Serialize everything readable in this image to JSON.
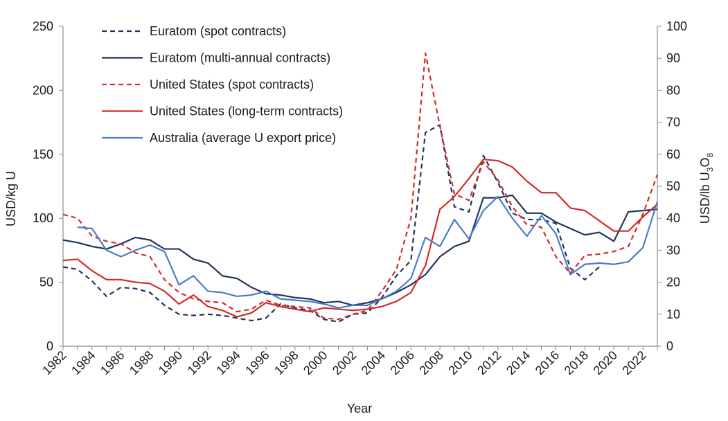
{
  "chart_data": {
    "type": "line",
    "xlabel": "Year",
    "ylabel_left": "USD/kg U",
    "ylabel_right": "USD/lb U",
    "ylabel_right_sub1": "3",
    "ylabel_right_mid": "O",
    "ylabel_right_sub2": "8",
    "ylim_left": [
      0,
      250
    ],
    "ylim_right": [
      0,
      100
    ],
    "yticks_left": [
      0,
      50,
      100,
      150,
      200,
      250
    ],
    "yticks_right": [
      0,
      10,
      20,
      30,
      40,
      50,
      60,
      70,
      80,
      90,
      100
    ],
    "xlim": [
      1982,
      2023
    ],
    "xticks": [
      "1982",
      "1984",
      "1986",
      "1988",
      "1990",
      "1992",
      "1994",
      "1996",
      "1998",
      "2000",
      "2002",
      "2004",
      "2006",
      "2008",
      "2010",
      "2012",
      "2014",
      "2016",
      "2018",
      "2020",
      "2022"
    ],
    "grid": false,
    "legend_position": "top-left",
    "series": [
      {
        "name": "Euratom (spot contracts)",
        "color": "#1f3556",
        "dash": "dashed",
        "points": [
          [
            1982,
            62
          ],
          [
            1983,
            60
          ],
          [
            1984,
            51
          ],
          [
            1985,
            39
          ],
          [
            1986,
            46
          ],
          [
            1987,
            45
          ],
          [
            1988,
            42
          ],
          [
            1989,
            32
          ],
          [
            1990,
            25
          ],
          [
            1991,
            24
          ],
          [
            1992,
            25
          ],
          [
            1993,
            24
          ],
          [
            1994,
            22
          ],
          [
            1995,
            20
          ],
          [
            1996,
            22
          ],
          [
            1997,
            33
          ],
          [
            1998,
            30
          ],
          [
            1999,
            28
          ],
          [
            2000,
            21
          ],
          [
            2001,
            19
          ],
          [
            2002,
            25
          ],
          [
            2003,
            26
          ],
          [
            2004,
            38
          ],
          [
            2005,
            55
          ],
          [
            2006,
            67
          ],
          [
            2007,
            167
          ],
          [
            2008,
            173
          ],
          [
            2009,
            109
          ],
          [
            2010,
            105
          ],
          [
            2011,
            149
          ],
          [
            2012,
            128
          ],
          [
            2013,
            104
          ],
          [
            2014,
            99
          ],
          [
            2015,
            99
          ],
          [
            2016,
            96
          ],
          [
            2017,
            61
          ],
          [
            2018,
            52
          ],
          [
            2019,
            62
          ]
        ]
      },
      {
        "name": "Euratom (multi-annual contracts)",
        "color": "#1f3556",
        "dash": "solid",
        "points": [
          [
            1982,
            83
          ],
          [
            1983,
            81
          ],
          [
            1984,
            78
          ],
          [
            1985,
            76
          ],
          [
            1986,
            80
          ],
          [
            1987,
            85
          ],
          [
            1988,
            83
          ],
          [
            1989,
            76
          ],
          [
            1990,
            76
          ],
          [
            1991,
            68
          ],
          [
            1992,
            65
          ],
          [
            1993,
            55
          ],
          [
            1994,
            53
          ],
          [
            1995,
            46
          ],
          [
            1996,
            41
          ],
          [
            1997,
            40
          ],
          [
            1998,
            38
          ],
          [
            1999,
            37
          ],
          [
            2000,
            34
          ],
          [
            2001,
            35
          ],
          [
            2002,
            32
          ],
          [
            2003,
            34
          ],
          [
            2004,
            37
          ],
          [
            2005,
            42
          ],
          [
            2006,
            48
          ],
          [
            2007,
            56
          ],
          [
            2008,
            70
          ],
          [
            2009,
            78
          ],
          [
            2010,
            82
          ],
          [
            2011,
            116
          ],
          [
            2012,
            116
          ],
          [
            2013,
            118
          ],
          [
            2014,
            104
          ],
          [
            2015,
            104
          ],
          [
            2016,
            97
          ],
          [
            2017,
            92
          ],
          [
            2018,
            87
          ],
          [
            2019,
            89
          ],
          [
            2020,
            82
          ],
          [
            2021,
            105
          ],
          [
            2022,
            106
          ],
          [
            2023,
            107
          ]
        ]
      },
      {
        "name": "United States (spot contracts)",
        "color": "#d42a2a",
        "dash": "dashed",
        "points": [
          [
            1982,
            103
          ],
          [
            1983,
            100
          ],
          [
            1984,
            86
          ],
          [
            1985,
            82
          ],
          [
            1986,
            80
          ],
          [
            1987,
            73
          ],
          [
            1988,
            70
          ],
          [
            1989,
            52
          ],
          [
            1990,
            42
          ],
          [
            1991,
            37
          ],
          [
            1992,
            35
          ],
          [
            1993,
            34
          ],
          [
            1994,
            27
          ],
          [
            1995,
            29
          ],
          [
            1996,
            36
          ],
          [
            1997,
            32
          ],
          [
            1998,
            31
          ],
          [
            1999,
            30
          ],
          [
            2000,
            22
          ],
          [
            2001,
            21
          ],
          [
            2002,
            25
          ],
          [
            2003,
            28
          ],
          [
            2004,
            43
          ],
          [
            2005,
            60
          ],
          [
            2006,
            100
          ],
          [
            2007,
            229
          ],
          [
            2008,
            172
          ],
          [
            2009,
            119
          ],
          [
            2010,
            114
          ],
          [
            2011,
            144
          ],
          [
            2012,
            130
          ],
          [
            2013,
            109
          ],
          [
            2014,
            95
          ],
          [
            2015,
            93
          ],
          [
            2016,
            70
          ],
          [
            2017,
            57
          ],
          [
            2018,
            71
          ],
          [
            2019,
            72
          ],
          [
            2020,
            74
          ],
          [
            2021,
            78
          ],
          [
            2022,
            103
          ],
          [
            2023,
            134
          ]
        ]
      },
      {
        "name": "United States (long-term contracts)",
        "color": "#d42a2a",
        "dash": "solid",
        "points": [
          [
            1982,
            67
          ],
          [
            1983,
            68
          ],
          [
            1984,
            59
          ],
          [
            1985,
            52
          ],
          [
            1986,
            52
          ],
          [
            1987,
            50
          ],
          [
            1988,
            49
          ],
          [
            1989,
            43
          ],
          [
            1990,
            33
          ],
          [
            1991,
            40
          ],
          [
            1992,
            31
          ],
          [
            1993,
            28
          ],
          [
            1994,
            23
          ],
          [
            1995,
            26
          ],
          [
            1996,
            34
          ],
          [
            1997,
            31
          ],
          [
            1998,
            29
          ],
          [
            1999,
            27
          ],
          [
            2000,
            30
          ],
          [
            2001,
            29
          ],
          [
            2002,
            28
          ],
          [
            2003,
            29
          ],
          [
            2004,
            31
          ],
          [
            2005,
            35
          ],
          [
            2006,
            42
          ],
          [
            2007,
            63
          ],
          [
            2008,
            107
          ],
          [
            2009,
            117
          ],
          [
            2010,
            131
          ],
          [
            2011,
            146
          ],
          [
            2012,
            145
          ],
          [
            2013,
            140
          ],
          [
            2014,
            129
          ],
          [
            2015,
            120
          ],
          [
            2016,
            120
          ],
          [
            2017,
            108
          ],
          [
            2018,
            106
          ],
          [
            2019,
            98
          ],
          [
            2020,
            90
          ],
          [
            2021,
            90
          ],
          [
            2022,
            101
          ],
          [
            2023,
            111
          ]
        ]
      },
      {
        "name": "Australia (average U export price)",
        "color": "#4a7bc8",
        "dash": "solid",
        "points": [
          [
            1983,
            93
          ],
          [
            1984,
            92
          ],
          [
            1985,
            75
          ],
          [
            1986,
            70
          ],
          [
            1987,
            75
          ],
          [
            1988,
            79
          ],
          [
            1989,
            74
          ],
          [
            1990,
            48
          ],
          [
            1991,
            55
          ],
          [
            1992,
            43
          ],
          [
            1993,
            42
          ],
          [
            1994,
            39
          ],
          [
            1995,
            40
          ],
          [
            1996,
            43
          ],
          [
            1997,
            37
          ],
          [
            1998,
            36
          ],
          [
            1999,
            35
          ],
          [
            2000,
            33
          ],
          [
            2001,
            30
          ],
          [
            2002,
            32
          ],
          [
            2003,
            32
          ],
          [
            2004,
            37
          ],
          [
            2005,
            43
          ],
          [
            2006,
            53
          ],
          [
            2007,
            85
          ],
          [
            2008,
            78
          ],
          [
            2009,
            99
          ],
          [
            2010,
            84
          ],
          [
            2011,
            106
          ],
          [
            2012,
            117
          ],
          [
            2013,
            100
          ],
          [
            2014,
            86
          ],
          [
            2015,
            102
          ],
          [
            2016,
            88
          ],
          [
            2017,
            56
          ],
          [
            2018,
            64
          ],
          [
            2019,
            65
          ],
          [
            2020,
            64
          ],
          [
            2021,
            66
          ],
          [
            2022,
            77
          ],
          [
            2023,
            113
          ]
        ]
      }
    ]
  }
}
